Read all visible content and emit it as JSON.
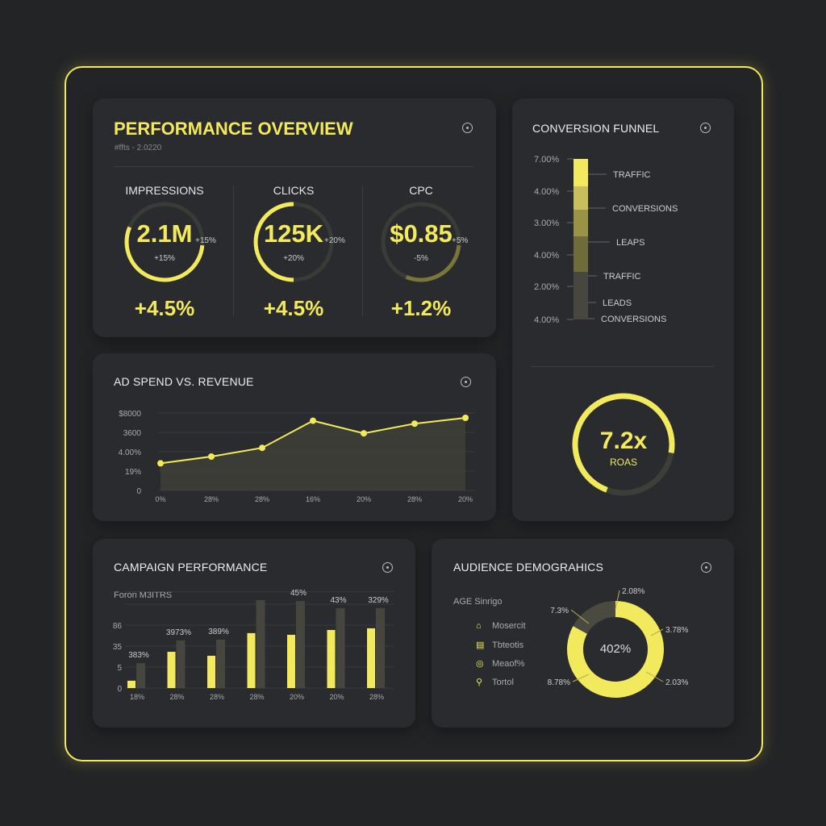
{
  "colors": {
    "accent": "#f2ea5c",
    "card": "#2a2b2e",
    "background": "#232426"
  },
  "performance": {
    "title": "PERFORMANCE OVERVIEW",
    "subtitle": "#ffts - 2.0220",
    "metrics": [
      {
        "label": "IMPRESSIONS",
        "value": "2.1M",
        "side_change": "+15%",
        "inner_change": "+15%",
        "bottom": "+4.5%",
        "progress": 0.55
      },
      {
        "label": "CLICKS",
        "value": "125K",
        "side_change": "+20%",
        "inner_change": "+20%",
        "bottom": "+4.5%",
        "progress": 0.45
      },
      {
        "label": "CPC",
        "value": "$0.85",
        "side_change": "+5%",
        "inner_change": "-5%",
        "bottom": "+1.2%",
        "progress": 0.3
      }
    ]
  },
  "funnel": {
    "title": "CONVERSION FUNNEL",
    "axis": [
      "7.00%",
      "4.00%",
      "3.00%",
      "4.00%",
      "2.00%",
      "4.00%"
    ],
    "stages": [
      "TRAFFIC",
      "CONVERSIONS",
      "LEAPS",
      "TRAFFIC",
      "LEADS",
      "CONVERSIONS"
    ],
    "roas_value": "7.2x",
    "roas_label": "ROAS",
    "roas_progress": 0.72
  },
  "adspend": {
    "title": "AD SPEND VS. REVENUE"
  },
  "campaign": {
    "title": "CAMPAIGN PERFORMANCE",
    "legend": "Forori M3ITRS"
  },
  "audience": {
    "title": "AUDIENCE DEMOGRAHICS",
    "subtitle": "AGE Sinrigo",
    "legend": [
      {
        "icon": "home-icon",
        "label": "Mosercit"
      },
      {
        "icon": "calendar-icon",
        "label": "Tbteotis"
      },
      {
        "icon": "coin-icon",
        "label": "Meaof%"
      },
      {
        "icon": "pin-icon",
        "label": "Tortol"
      }
    ],
    "center": "402%",
    "labels": [
      "2.08%",
      "3.78%",
      "2.03%",
      "8.78%",
      "7.3%"
    ],
    "segments": [
      {
        "value": 83,
        "color": "#f2ea5c"
      },
      {
        "value": 17,
        "color": "#4a4a40"
      }
    ]
  },
  "chart_data": [
    {
      "type": "line",
      "title": "AD SPEND VS. REVENUE",
      "categories": [
        "0%",
        "28%",
        "28%",
        "16%",
        "20%",
        "28%",
        "20%"
      ],
      "yticks": [
        "0",
        "19%",
        "4.00%",
        "3600",
        "$8000"
      ],
      "values": [
        1.4,
        1.75,
        2.2,
        3.6,
        2.95,
        3.45,
        3.75
      ],
      "ylim": [
        0,
        4
      ],
      "grid": true
    },
    {
      "type": "bar",
      "title": "CAMPAIGN PERFORMANCE",
      "categories": [
        "18%",
        "28%",
        "28%",
        "28%",
        "20%",
        "20%",
        "28%"
      ],
      "yticks": [
        "0",
        "5",
        "35",
        "86"
      ],
      "series": [
        {
          "values": [
            0.35,
            1.73,
            1.54,
            2.62,
            2.54,
            2.77,
            2.85
          ]
        },
        {
          "values": [
            1.19,
            2.27,
            2.31,
            4.19,
            4.15,
            3.81,
            3.81
          ]
        }
      ],
      "data_labels": [
        "383%",
        "3973%",
        "389%",
        "",
        "45%",
        "43%",
        "329%"
      ],
      "ylim": [
        0,
        4.6
      ],
      "grid": true
    }
  ]
}
